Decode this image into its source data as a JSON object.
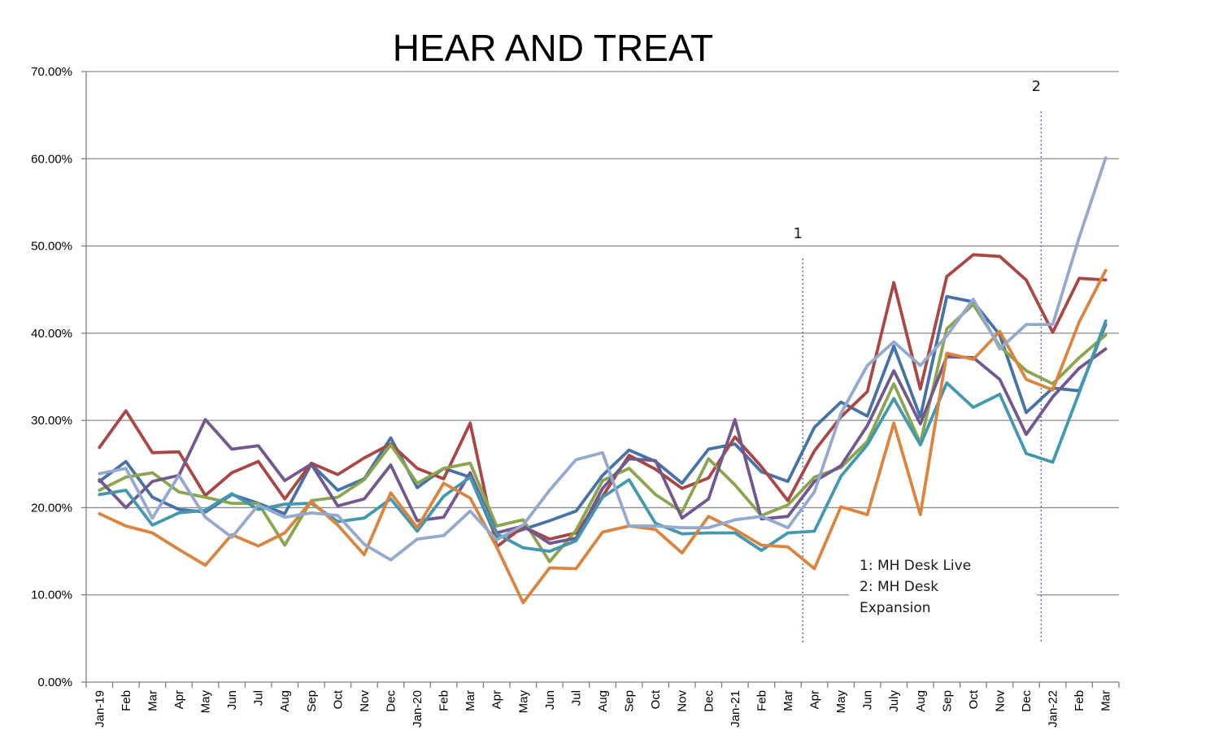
{
  "chart_data": {
    "type": "line",
    "title": "HEAR AND TREAT",
    "xlabel": "",
    "ylabel": "",
    "ylim": [
      0,
      0.7
    ],
    "y_ticks": [
      "0.00%",
      "10.00%",
      "20.00%",
      "30.00%",
      "40.00%",
      "50.00%",
      "60.00%",
      "70.00%"
    ],
    "grid": true,
    "legend": "none",
    "categories": [
      "Jan-19",
      "Feb",
      "Mar",
      "Apr",
      "May",
      "Jun",
      "Jul",
      "Aug",
      "Sep",
      "Oct",
      "Nov",
      "Dec",
      "Jan-20",
      "Feb",
      "Mar",
      "Apr",
      "May",
      "Jun",
      "Jul",
      "Aug",
      "Sep",
      "Oct",
      "Nov",
      "Dec",
      "Jan-21",
      "Feb",
      "Mar",
      "Apr",
      "May",
      "Jun",
      "July",
      "Aug",
      "Sep",
      "Oct",
      "Nov",
      "Dec",
      "Jan-22",
      "Feb",
      "Mar"
    ],
    "series": [
      {
        "color": "#4572a7",
        "values": [
          0.23,
          0.253,
          0.212,
          0.198,
          0.195,
          0.215,
          0.205,
          0.193,
          0.25,
          0.22,
          0.233,
          0.28,
          0.223,
          0.245,
          0.235,
          0.165,
          0.175,
          0.185,
          0.196,
          0.237,
          0.266,
          0.253,
          0.228,
          0.267,
          0.273,
          0.241,
          0.23,
          0.292,
          0.321,
          0.305,
          0.385,
          0.304,
          0.442,
          0.436,
          0.398,
          0.309,
          0.337,
          0.334,
          0.41
        ]
      },
      {
        "color": "#aa4643",
        "values": [
          0.269,
          0.311,
          0.263,
          0.264,
          0.214,
          0.24,
          0.253,
          0.21,
          0.251,
          0.238,
          0.257,
          0.273,
          0.245,
          0.233,
          0.297,
          0.155,
          0.178,
          0.164,
          0.171,
          0.213,
          0.26,
          0.244,
          0.222,
          0.234,
          0.281,
          0.247,
          0.208,
          0.265,
          0.304,
          0.333,
          0.458,
          0.336,
          0.465,
          0.49,
          0.488,
          0.461,
          0.401,
          0.463,
          0.461
        ]
      },
      {
        "color": "#89a54e",
        "values": [
          0.22,
          0.235,
          0.24,
          0.218,
          0.212,
          0.205,
          0.205,
          0.157,
          0.208,
          0.212,
          0.232,
          0.272,
          0.228,
          0.245,
          0.251,
          0.179,
          0.186,
          0.138,
          0.174,
          0.231,
          0.245,
          0.215,
          0.195,
          0.256,
          0.226,
          0.191,
          0.203,
          0.235,
          0.246,
          0.276,
          0.342,
          0.274,
          0.405,
          0.433,
          0.385,
          0.357,
          0.342,
          0.372,
          0.398
        ]
      },
      {
        "color": "#71588f",
        "values": [
          0.232,
          0.2,
          0.23,
          0.237,
          0.301,
          0.267,
          0.271,
          0.231,
          0.25,
          0.202,
          0.21,
          0.249,
          0.185,
          0.189,
          0.24,
          0.171,
          0.179,
          0.159,
          0.165,
          0.222,
          0.256,
          0.254,
          0.188,
          0.21,
          0.301,
          0.187,
          0.19,
          0.23,
          0.248,
          0.294,
          0.357,
          0.296,
          0.373,
          0.372,
          0.347,
          0.284,
          0.327,
          0.36,
          0.382
        ]
      },
      {
        "color": "#4198af",
        "values": [
          0.215,
          0.22,
          0.18,
          0.194,
          0.197,
          0.216,
          0.198,
          0.204,
          0.205,
          0.184,
          0.188,
          0.21,
          0.173,
          0.213,
          0.235,
          0.17,
          0.154,
          0.15,
          0.162,
          0.212,
          0.232,
          0.182,
          0.17,
          0.171,
          0.171,
          0.151,
          0.171,
          0.173,
          0.236,
          0.272,
          0.325,
          0.272,
          0.343,
          0.315,
          0.33,
          0.262,
          0.252,
          0.332,
          0.414
        ]
      },
      {
        "color": "#db843d",
        "values": [
          0.193,
          0.179,
          0.171,
          0.152,
          0.134,
          0.169,
          0.156,
          0.171,
          0.207,
          0.18,
          0.146,
          0.217,
          0.177,
          0.228,
          0.211,
          0.155,
          0.091,
          0.131,
          0.13,
          0.172,
          0.179,
          0.175,
          0.148,
          0.19,
          0.175,
          0.157,
          0.155,
          0.13,
          0.201,
          0.192,
          0.297,
          0.192,
          0.377,
          0.37,
          0.402,
          0.347,
          0.335,
          0.413,
          0.472
        ]
      },
      {
        "color": "#93a9cf",
        "values": [
          0.239,
          0.245,
          0.188,
          0.237,
          0.189,
          0.166,
          0.203,
          0.189,
          0.194,
          0.191,
          0.158,
          0.14,
          0.164,
          0.168,
          0.196,
          0.163,
          0.18,
          0.22,
          0.255,
          0.263,
          0.179,
          0.179,
          0.177,
          0.177,
          0.186,
          0.19,
          0.177,
          0.218,
          0.308,
          0.363,
          0.39,
          0.363,
          0.397,
          0.439,
          0.382,
          0.41,
          0.41,
          0.51,
          0.601
        ]
      }
    ],
    "markers": [
      {
        "label": "1",
        "category_index": 27
      },
      {
        "label": "2",
        "category_index": 36
      }
    ],
    "annotation": {
      "line1": "1: MH Desk Live",
      "line2": "2: MH Desk",
      "line3": "Expansion"
    }
  }
}
